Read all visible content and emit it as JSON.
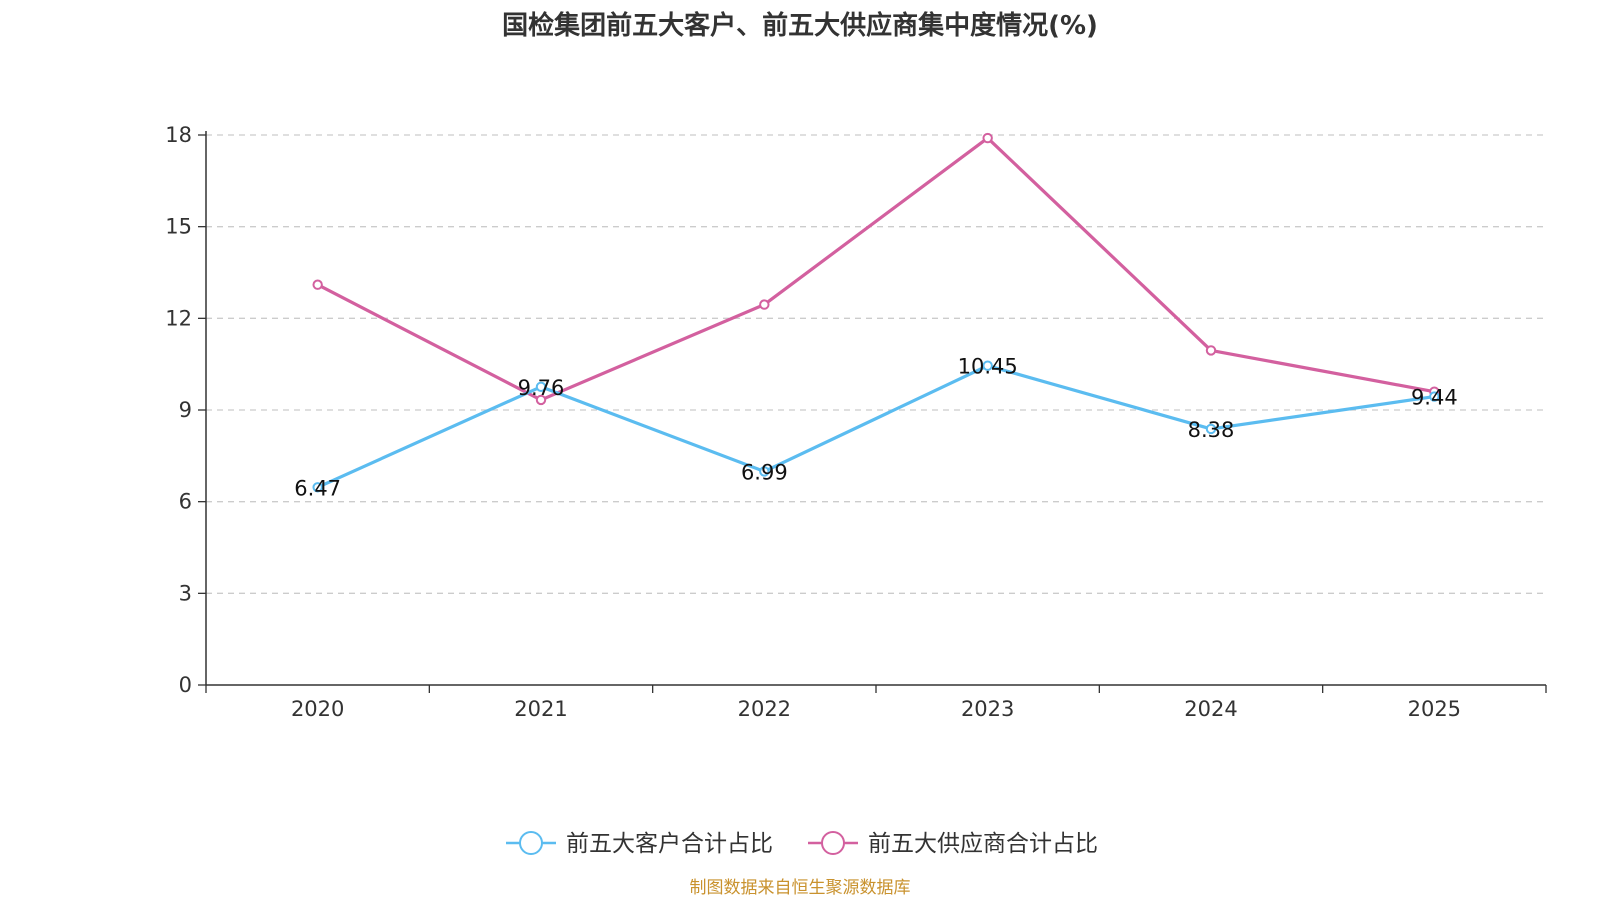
{
  "chart_data": {
    "type": "line",
    "title": "国检集团前五大客户、前五大供应商集中度情况(%)",
    "categories": [
      "2020",
      "2021",
      "2022",
      "2023",
      "2024",
      "2025"
    ],
    "ylim": [
      0,
      18
    ],
    "yticks": [
      "0",
      "3",
      "6",
      "9",
      "12",
      "15",
      "18"
    ],
    "grid": true,
    "legend_position": "bottom-center",
    "series": [
      {
        "name": "前五大客户合计占比",
        "color": "#5bbcf0",
        "values": [
          6.47,
          9.76,
          6.99,
          10.45,
          8.38,
          9.44
        ],
        "labels": [
          "6.47",
          "9.76",
          "6.99",
          "10.45",
          "8.38",
          "9.44"
        ]
      },
      {
        "name": "前五大供应商合计占比",
        "color": "#d3609f",
        "values": [
          13.1,
          9.33,
          12.45,
          17.9,
          10.95,
          9.6
        ],
        "labels": []
      }
    ]
  },
  "source_text": "制图数据来自恒生聚源数据库",
  "source_color": "#c9922e"
}
